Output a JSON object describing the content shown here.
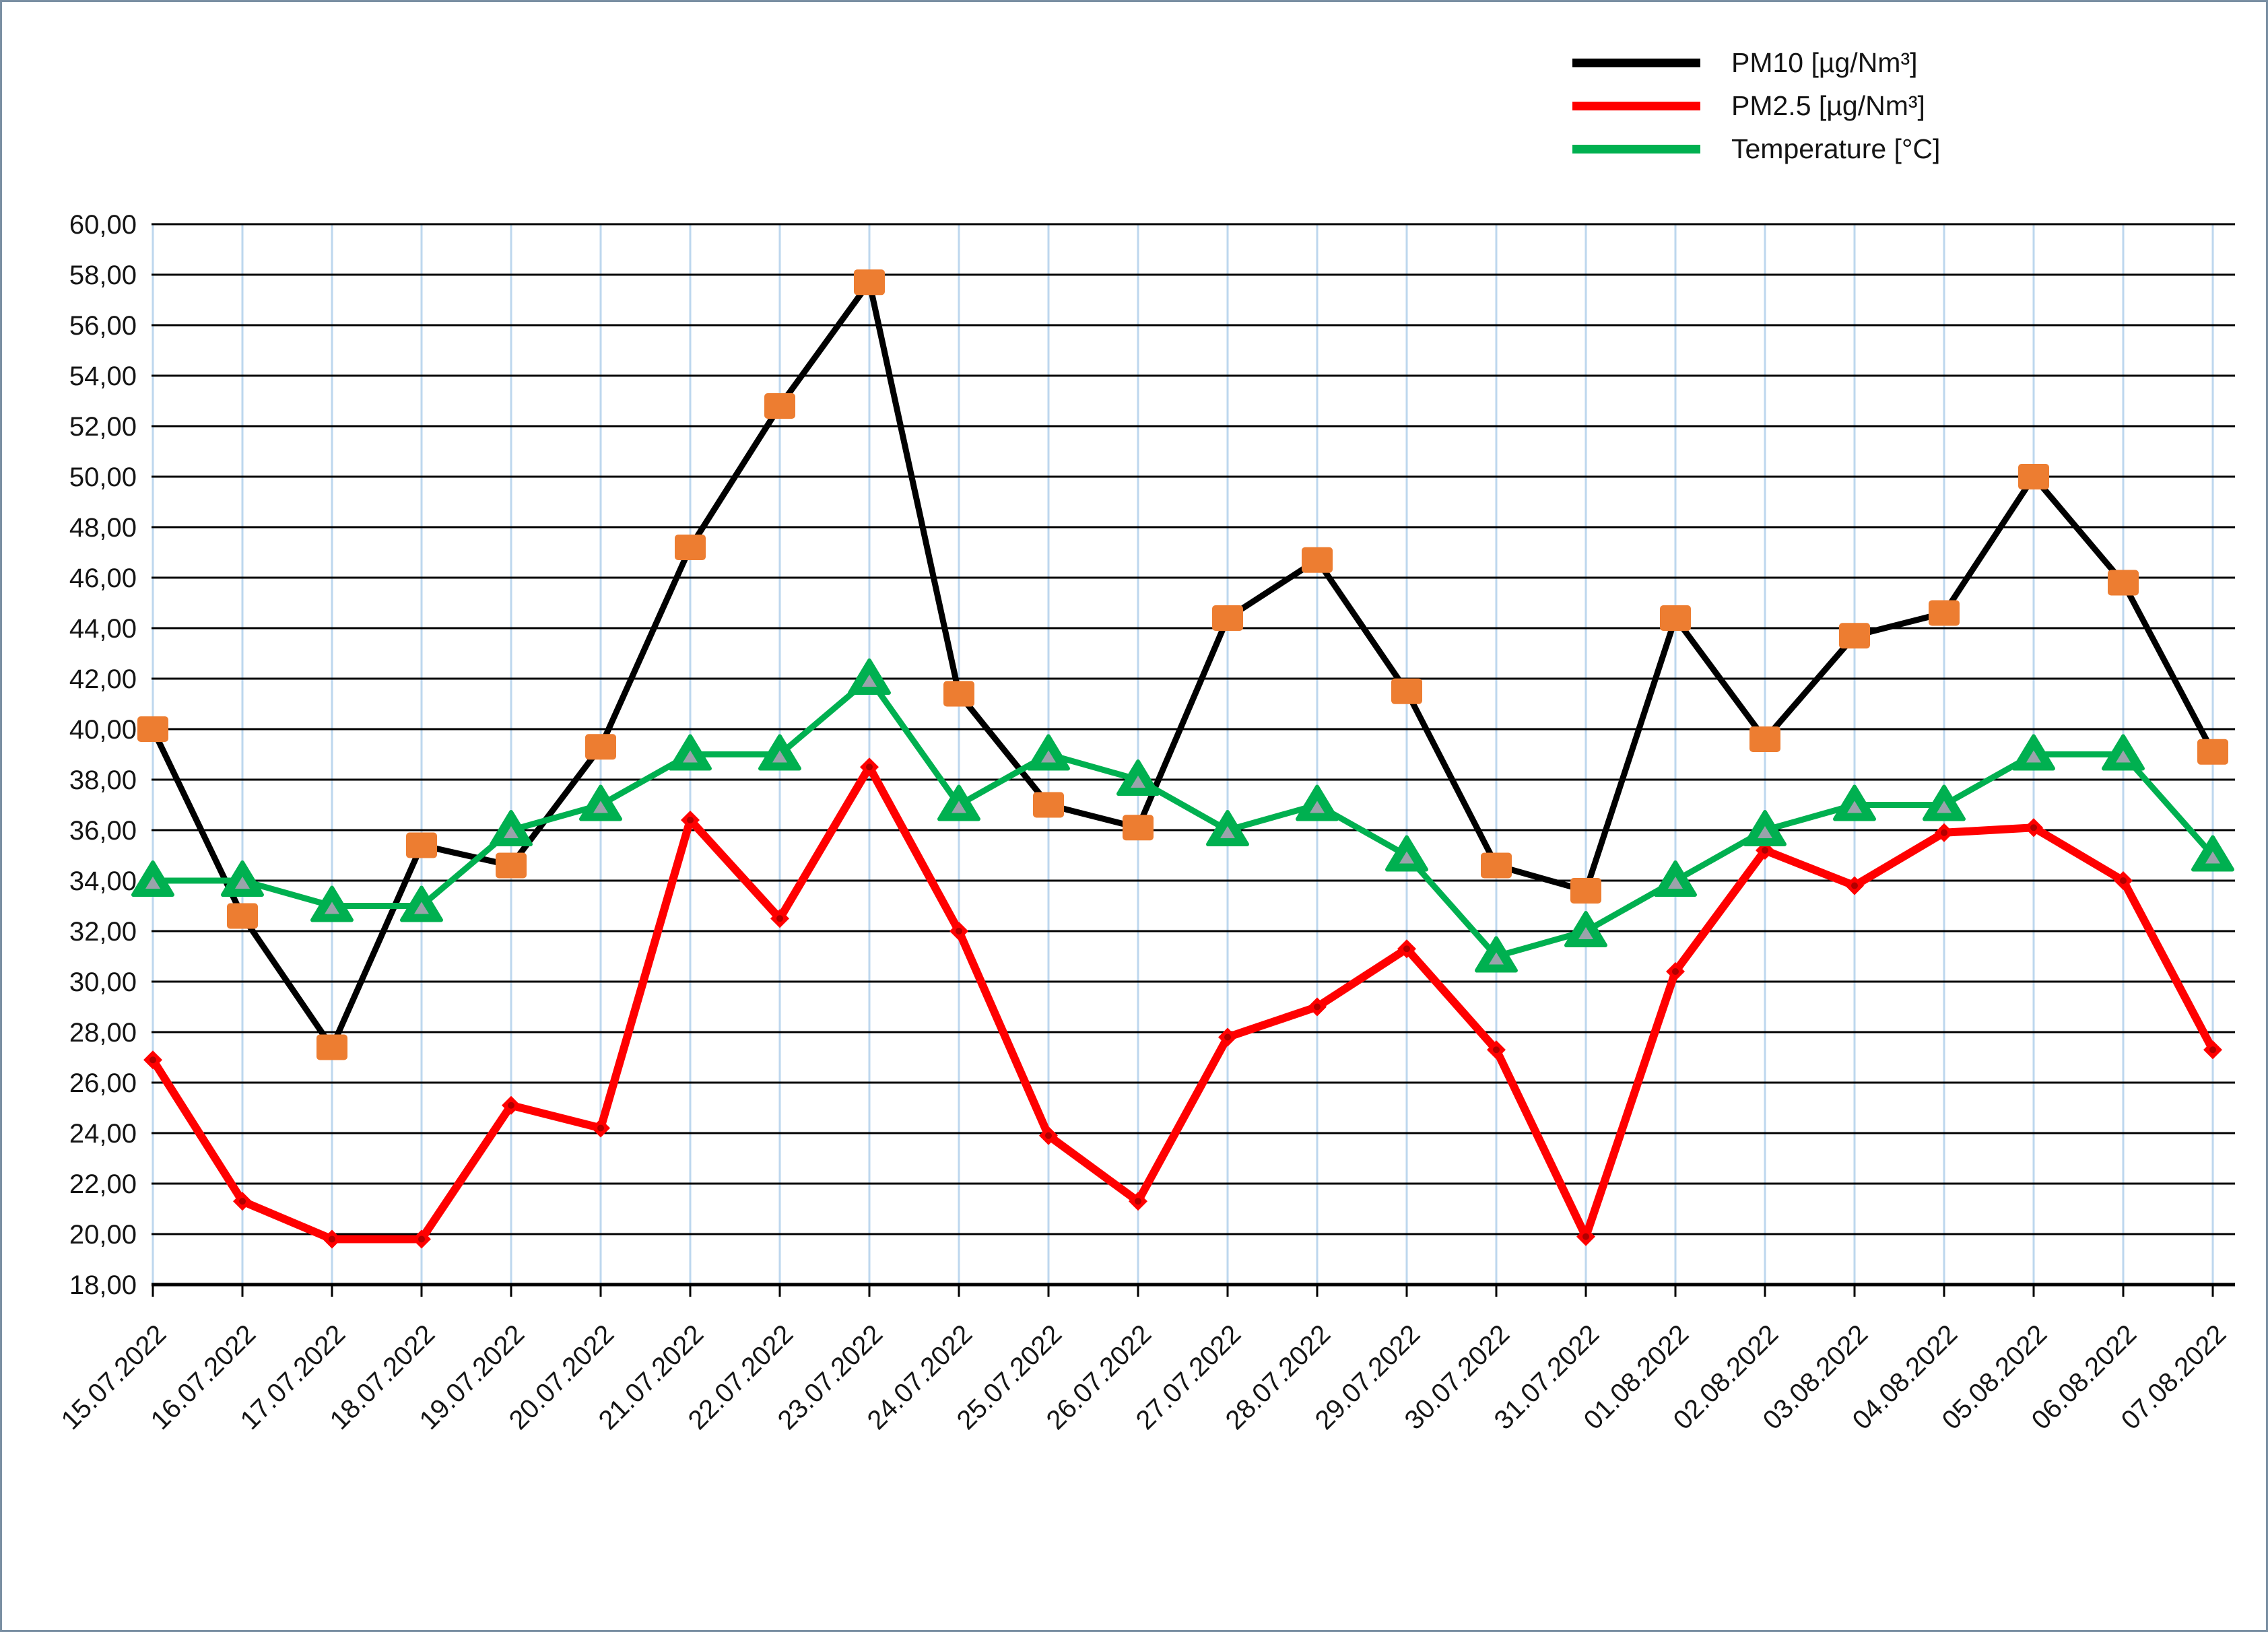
{
  "page": {
    "background": "#ffffff",
    "frame_border_color": "#7a8fa3"
  },
  "legend": {
    "position": "top-right",
    "items": [
      {
        "label": "PM10 [µg/Nm³]",
        "color": "#000000"
      },
      {
        "label": "PM2.5 [µg/Nm³]",
        "color": "#ff0000"
      },
      {
        "label": "Temperature [°C]",
        "color": "#00b050"
      }
    ]
  },
  "chart_data": {
    "type": "line",
    "title": "",
    "xlabel": "",
    "ylabel": "",
    "ylim": [
      18,
      60
    ],
    "y_step": 2,
    "y_tick_labels": [
      "18,00",
      "20,00",
      "22,00",
      "24,00",
      "26,00",
      "28,00",
      "30,00",
      "32,00",
      "34,00",
      "36,00",
      "38,00",
      "40,00",
      "42,00",
      "44,00",
      "46,00",
      "48,00",
      "50,00",
      "52,00",
      "54,00",
      "56,00",
      "58,00",
      "60,00"
    ],
    "decimal_separator": ",",
    "grid": {
      "horizontal_color": "#000000",
      "vertical_color": "#bdd7ee",
      "horizontal_on": true,
      "vertical_on": true
    },
    "axis_color": "#000000",
    "legend_position": "top-right",
    "categories": [
      "15.07.2022",
      "16.07.2022",
      "17.07.2022",
      "18.07.2022",
      "19.07.2022",
      "20.07.2022",
      "21.07.2022",
      "22.07.2022",
      "23.07.2022",
      "24.07.2022",
      "25.07.2022",
      "26.07.2022",
      "27.07.2022",
      "28.07.2022",
      "29.07.2022",
      "30.07.2022",
      "31.07.2022",
      "01.08.2022",
      "02.08.2022",
      "03.08.2022",
      "04.08.2022",
      "05.08.2022",
      "06.08.2022",
      "07.08.2022"
    ],
    "series": [
      {
        "name": "PM10 [µg/Nm³]",
        "color": "#000000",
        "line_width": 9,
        "marker": "square",
        "marker_color": "#ed7d31",
        "values": [
          40.0,
          32.6,
          27.4,
          35.4,
          34.6,
          39.3,
          47.2,
          52.8,
          57.7,
          41.4,
          37.0,
          36.1,
          44.4,
          46.7,
          41.5,
          34.6,
          33.6,
          44.4,
          39.6,
          43.7,
          44.6,
          50.0,
          45.8,
          39.1
        ]
      },
      {
        "name": "PM2.5 [µg/Nm³]",
        "color": "#ff0000",
        "line_width": 12,
        "marker": "diamond",
        "marker_color": "#ff0000",
        "values": [
          26.9,
          21.3,
          19.8,
          19.8,
          25.1,
          24.2,
          36.4,
          32.5,
          38.5,
          32.0,
          23.9,
          21.3,
          27.8,
          29.0,
          31.3,
          27.3,
          19.9,
          30.4,
          35.2,
          33.8,
          35.9,
          36.1,
          34.0,
          27.3
        ]
      },
      {
        "name": "Temperature [°C]",
        "color": "#00b050",
        "line_width": 9,
        "marker": "triangle",
        "marker_color": "#00b050",
        "marker_inner_color": "#9aa3ab",
        "values": [
          34.0,
          34.0,
          33.0,
          33.0,
          36.0,
          37.0,
          39.0,
          39.0,
          42.0,
          37.0,
          39.0,
          38.0,
          36.0,
          37.0,
          35.0,
          31.0,
          32.0,
          34.0,
          36.0,
          37.0,
          37.0,
          39.0,
          39.0,
          35.0
        ]
      }
    ]
  }
}
